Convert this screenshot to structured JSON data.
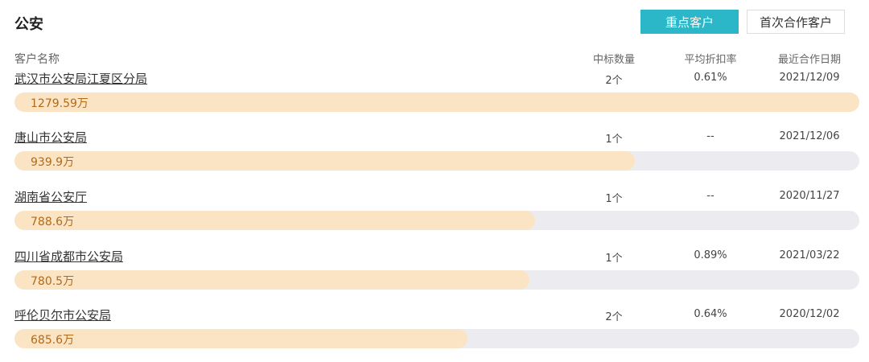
{
  "header": {
    "title": "公安",
    "key_customer_label": "重点客户",
    "first_coop_label": "首次合作客户"
  },
  "columns": {
    "name": "客户名称",
    "count": "中标数量",
    "discount": "平均折扣率",
    "last_date": "最近合作日期"
  },
  "colors": {
    "accent": "#2cb7c8",
    "bar_fill": "#fbe4c4",
    "bar_track": "#ececf0",
    "amount_text": "#b26a19"
  },
  "rows": [
    {
      "name": "武汉市公安局江夏区分局",
      "count": "2个",
      "discount": "0.61%",
      "date": "2021/12/09",
      "amount": "1279.59万",
      "amount_value": 1279.59
    },
    {
      "name": "唐山市公安局",
      "count": "1个",
      "discount": "--",
      "date": "2021/12/06",
      "amount": "939.9万",
      "amount_value": 939.9
    },
    {
      "name": "湖南省公安厅",
      "count": "1个",
      "discount": "--",
      "date": "2020/11/27",
      "amount": "788.6万",
      "amount_value": 788.6
    },
    {
      "name": "四川省成都市公安局",
      "count": "1个",
      "discount": "0.89%",
      "date": "2021/03/22",
      "amount": "780.5万",
      "amount_value": 780.5
    },
    {
      "name": "呼伦贝尔市公安局",
      "count": "2个",
      "discount": "0.64%",
      "date": "2020/12/02",
      "amount": "685.6万",
      "amount_value": 685.6
    }
  ]
}
